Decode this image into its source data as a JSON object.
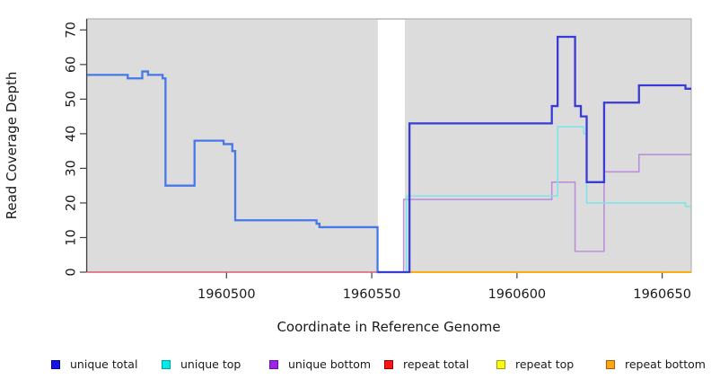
{
  "chart_data": {
    "type": "line",
    "step": true,
    "title": "",
    "xlabel": "Coordinate in Reference Genome",
    "ylabel": "Read Coverage Depth",
    "xlim": [
      1960452,
      1960660
    ],
    "ylim": [
      0,
      73.2
    ],
    "x_ticks": [
      1960500,
      1960550,
      1960600,
      1960650
    ],
    "y_ticks": [
      0,
      10,
      20,
      30,
      40,
      50,
      60,
      70
    ],
    "grid": false,
    "legend_position": "bottom",
    "plot_background": "#dcdcdc",
    "box_color": "#b0b0b0",
    "axis_color": "#404040",
    "tick_label_color": "#1a1a1a",
    "gap_region": {
      "from": 1960552.1,
      "to": 1960561.4,
      "color": "#ffffff"
    },
    "series": [
      {
        "name": "repeat total",
        "color": "#e25c78",
        "width": 1.6,
        "end": 1960552,
        "points": [
          [
            1960452,
            0
          ]
        ]
      },
      {
        "name": "repeat top",
        "color": "#f2f20a",
        "width": 1.6,
        "end": 1960660,
        "points": [
          [
            1960561,
            0
          ]
        ]
      },
      {
        "name": "repeat bottom",
        "color": "#ffa200",
        "width": 1.8,
        "end": 1960660,
        "points": [
          [
            1960561,
            0
          ]
        ]
      },
      {
        "name": "unique bottom",
        "color": "#bc8edb",
        "width": 1.6,
        "end": 1960660,
        "points": [
          [
            1960561,
            0
          ],
          [
            1960561,
            21
          ],
          [
            1960612,
            26
          ],
          [
            1960620,
            6
          ],
          [
            1960630,
            29
          ],
          [
            1960642,
            34
          ]
        ]
      },
      {
        "name": "unique top",
        "color": "#7de5ea",
        "width": 1.6,
        "end": 1960660,
        "points": [
          [
            1960562,
            0
          ],
          [
            1960562,
            22
          ],
          [
            1960614,
            42
          ],
          [
            1960623,
            40
          ],
          [
            1960624,
            20
          ],
          [
            1960658,
            19
          ]
        ]
      },
      {
        "name": "unique total (left of gap)",
        "color": "#4678e8",
        "width": 2.3,
        "end": 1960553,
        "points": [
          [
            1960452,
            57
          ],
          [
            1960466,
            56
          ],
          [
            1960471,
            58
          ],
          [
            1960473,
            57
          ],
          [
            1960478,
            56
          ],
          [
            1960479,
            25
          ],
          [
            1960489,
            38
          ],
          [
            1960499,
            37
          ],
          [
            1960502,
            35
          ],
          [
            1960503,
            15
          ],
          [
            1960531,
            14
          ],
          [
            1960532,
            13
          ],
          [
            1960552,
            0
          ]
        ]
      },
      {
        "name": "unique total (right of gap)",
        "color": "#3a3ad4",
        "width": 2.3,
        "end": 1960660,
        "points": [
          [
            1960552,
            0
          ],
          [
            1960563,
            43
          ],
          [
            1960612,
            48
          ],
          [
            1960614,
            68
          ],
          [
            1960620,
            48
          ],
          [
            1960622,
            45
          ],
          [
            1960624,
            26
          ],
          [
            1960630,
            49
          ],
          [
            1960642,
            54
          ],
          [
            1960658,
            53
          ]
        ]
      }
    ]
  },
  "legend": {
    "items": [
      {
        "label": "unique total",
        "fill": "#1414e6",
        "border": "#0000a0"
      },
      {
        "label": "unique top",
        "fill": "#00eaea",
        "border": "#00a0a8"
      },
      {
        "label": "unique bottom",
        "fill": "#a021e8",
        "border": "#6a0dad"
      },
      {
        "label": "repeat total",
        "fill": "#fa1414",
        "border": "#990000"
      },
      {
        "label": "repeat top",
        "fill": "#fafa14",
        "border": "#a0a000"
      },
      {
        "label": "repeat bottom",
        "fill": "#ffa414",
        "border": "#a06000"
      }
    ]
  }
}
